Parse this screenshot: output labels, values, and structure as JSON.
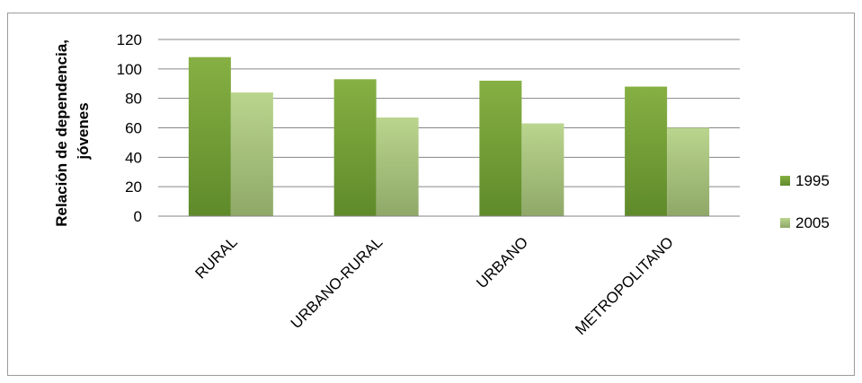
{
  "chart_data": {
    "type": "bar",
    "categories": [
      "RURAL",
      "URBANO-RURAL",
      "URBANO",
      "METROPOLITANO"
    ],
    "series": [
      {
        "name": "1995",
        "values": [
          108,
          93,
          92,
          88
        ],
        "color": "#77a23a"
      },
      {
        "name": "2005",
        "values": [
          84,
          67,
          63,
          60
        ],
        "color": "#b0cd85"
      }
    ],
    "title": "",
    "xlabel": "",
    "ylabel_lines": [
      "Relación de dependencia,",
      "jóvenes"
    ],
    "ylim": [
      0,
      120
    ],
    "yticks": [
      0,
      20,
      40,
      60,
      80,
      100,
      120
    ],
    "grid": true,
    "legend_position": "right"
  }
}
